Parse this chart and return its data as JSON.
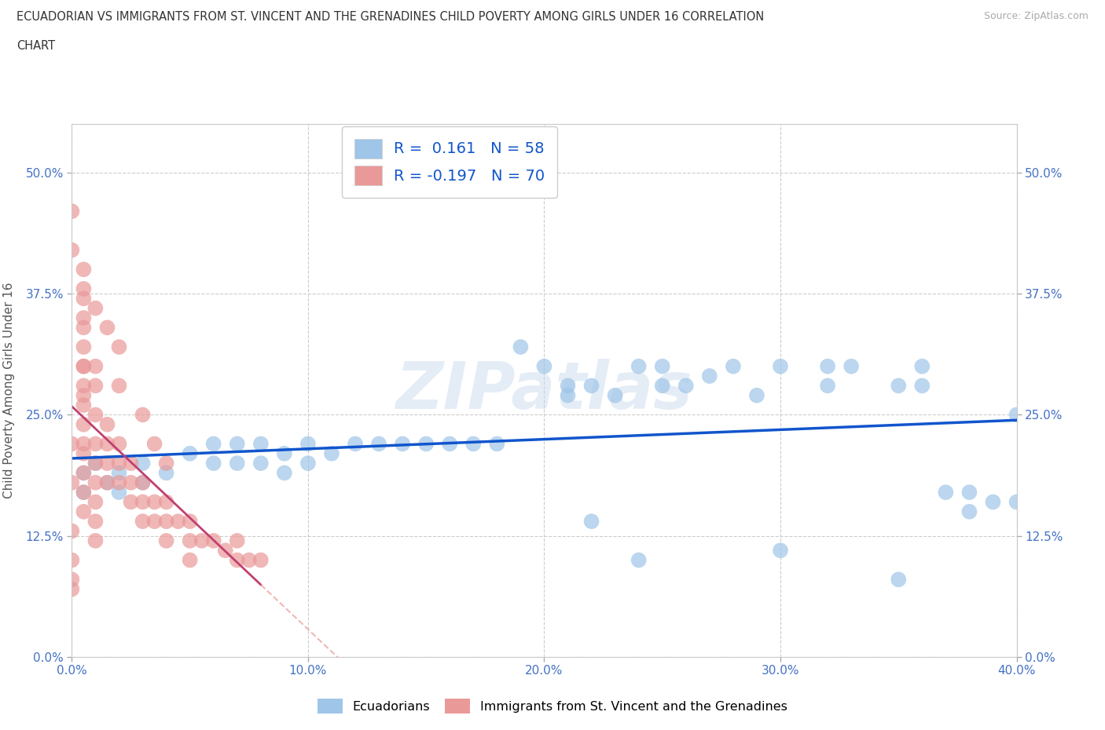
{
  "title_line1": "ECUADORIAN VS IMMIGRANTS FROM ST. VINCENT AND THE GRENADINES CHILD POVERTY AMONG GIRLS UNDER 16 CORRELATION",
  "title_line2": "CHART",
  "source_text": "Source: ZipAtlas.com",
  "ylabel": "Child Poverty Among Girls Under 16",
  "xlabel_ticks": [
    "0.0%",
    "10.0%",
    "20.0%",
    "30.0%",
    "40.0%"
  ],
  "ylabel_ticks": [
    "0.0%",
    "12.5%",
    "25.0%",
    "37.5%",
    "50.0%"
  ],
  "xlim": [
    0.0,
    0.4
  ],
  "ylim": [
    0.0,
    0.55
  ],
  "blue_color": "#9fc5e8",
  "pink_color": "#ea9999",
  "blue_line_color": "#1155cc",
  "pink_line_color": "#c04070",
  "legend_r_n_color": "#1155cc",
  "R_blue": 0.161,
  "N_blue": 58,
  "R_pink": -0.197,
  "N_pink": 70,
  "watermark": "ZIPatlas",
  "legend_label_blue": "Ecuadorians",
  "legend_label_pink": "Immigrants from St. Vincent and the Grenadines",
  "blue_x": [
    0.005,
    0.005,
    0.01,
    0.015,
    0.02,
    0.02,
    0.03,
    0.03,
    0.04,
    0.05,
    0.06,
    0.06,
    0.07,
    0.07,
    0.08,
    0.08,
    0.09,
    0.09,
    0.1,
    0.1,
    0.11,
    0.12,
    0.13,
    0.14,
    0.15,
    0.16,
    0.17,
    0.18,
    0.19,
    0.2,
    0.21,
    0.21,
    0.22,
    0.23,
    0.24,
    0.25,
    0.25,
    0.26,
    0.27,
    0.28,
    0.29,
    0.3,
    0.32,
    0.32,
    0.33,
    0.35,
    0.36,
    0.36,
    0.37,
    0.38,
    0.38,
    0.39,
    0.4,
    0.4,
    0.22,
    0.24,
    0.3,
    0.35
  ],
  "blue_y": [
    0.19,
    0.17,
    0.2,
    0.18,
    0.19,
    0.17,
    0.2,
    0.18,
    0.19,
    0.21,
    0.22,
    0.2,
    0.22,
    0.2,
    0.22,
    0.2,
    0.21,
    0.19,
    0.22,
    0.2,
    0.21,
    0.22,
    0.22,
    0.22,
    0.22,
    0.22,
    0.22,
    0.22,
    0.32,
    0.3,
    0.28,
    0.27,
    0.28,
    0.27,
    0.3,
    0.3,
    0.28,
    0.28,
    0.29,
    0.3,
    0.27,
    0.3,
    0.3,
    0.28,
    0.3,
    0.28,
    0.3,
    0.28,
    0.17,
    0.17,
    0.15,
    0.16,
    0.25,
    0.16,
    0.14,
    0.1,
    0.11,
    0.08
  ],
  "pink_x": [
    0.0,
    0.0,
    0.0,
    0.0,
    0.0,
    0.005,
    0.005,
    0.005,
    0.005,
    0.005,
    0.005,
    0.005,
    0.005,
    0.005,
    0.005,
    0.01,
    0.01,
    0.01,
    0.01,
    0.01,
    0.01,
    0.01,
    0.01,
    0.01,
    0.015,
    0.015,
    0.015,
    0.015,
    0.02,
    0.02,
    0.02,
    0.025,
    0.025,
    0.025,
    0.03,
    0.03,
    0.03,
    0.035,
    0.035,
    0.04,
    0.04,
    0.04,
    0.045,
    0.05,
    0.05,
    0.05,
    0.055,
    0.06,
    0.065,
    0.07,
    0.07,
    0.075,
    0.08,
    0.0,
    0.005,
    0.01,
    0.015,
    0.02,
    0.02,
    0.03,
    0.035,
    0.04,
    0.005,
    0.005,
    0.005,
    0.005,
    0.005,
    0.005,
    0.0,
    0.0
  ],
  "pink_y": [
    0.46,
    0.22,
    0.18,
    0.1,
    0.07,
    0.35,
    0.3,
    0.28,
    0.26,
    0.24,
    0.22,
    0.21,
    0.19,
    0.17,
    0.15,
    0.3,
    0.28,
    0.25,
    0.22,
    0.2,
    0.18,
    0.16,
    0.14,
    0.12,
    0.24,
    0.22,
    0.2,
    0.18,
    0.22,
    0.2,
    0.18,
    0.2,
    0.18,
    0.16,
    0.18,
    0.16,
    0.14,
    0.16,
    0.14,
    0.16,
    0.14,
    0.12,
    0.14,
    0.14,
    0.12,
    0.1,
    0.12,
    0.12,
    0.11,
    0.12,
    0.1,
    0.1,
    0.1,
    0.42,
    0.38,
    0.36,
    0.34,
    0.32,
    0.28,
    0.25,
    0.22,
    0.2,
    0.4,
    0.37,
    0.34,
    0.32,
    0.3,
    0.27,
    0.13,
    0.08
  ]
}
